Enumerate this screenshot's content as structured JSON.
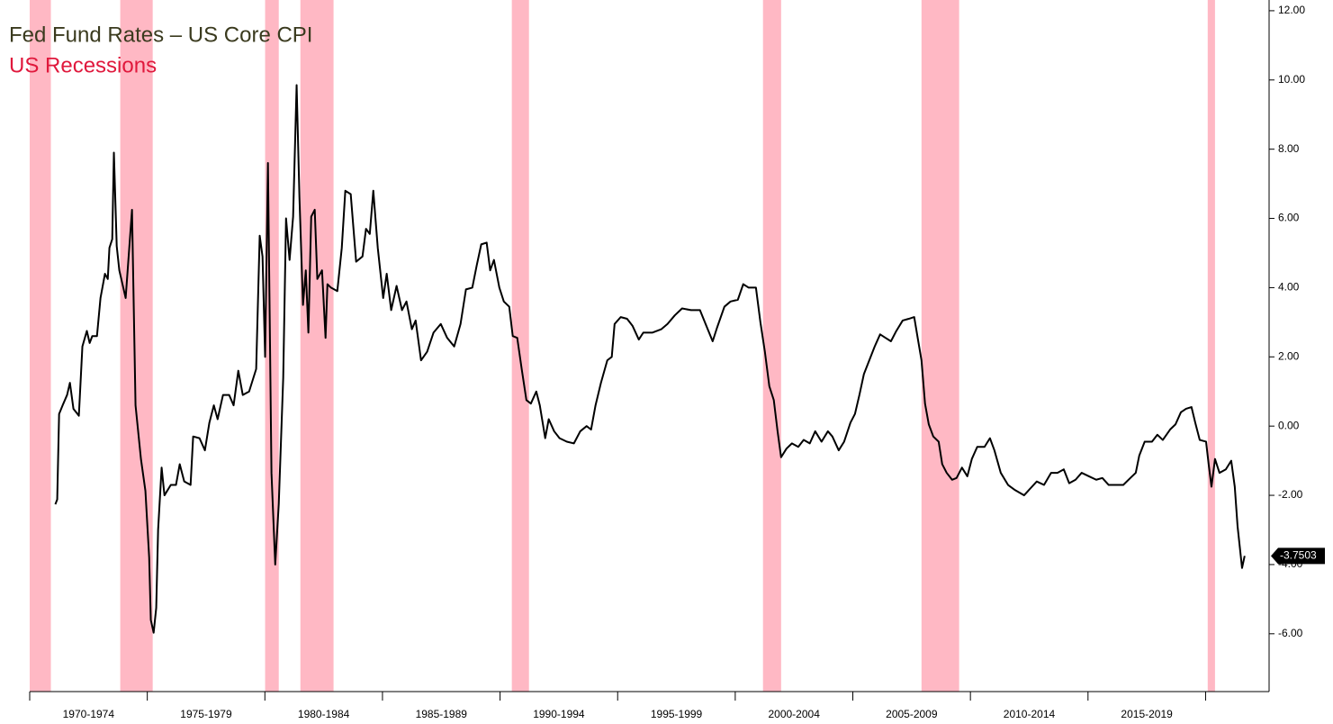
{
  "chart_data": {
    "type": "line",
    "title": "Fed Fund Rates – US Core CPI",
    "xlim": [
      1970,
      2022.7
    ],
    "xticks": [
      1970,
      1975,
      1980,
      1985,
      1990,
      1995,
      2000,
      2005,
      2010,
      2015,
      2020
    ],
    "categories": [
      "1970-1974",
      "1975-1979",
      "1980-1984",
      "1985-1989",
      "1990-1994",
      "1995-1999",
      "2000-2004",
      "2005-2009",
      "2010-2014",
      "2015-2019"
    ],
    "ylim": [
      -7.67,
      12.31
    ],
    "yticks": [
      {
        "value": -6,
        "label": "-6.00"
      },
      {
        "value": -4,
        "label": "-4.00"
      },
      {
        "value": -2,
        "label": "-2.00"
      },
      {
        "value": 0,
        "label": "0.00"
      },
      {
        "value": 2,
        "label": "2.00"
      },
      {
        "value": 4,
        "label": "4.00"
      },
      {
        "value": 6,
        "label": "6.00"
      },
      {
        "value": 8,
        "label": "8.00"
      },
      {
        "value": 10,
        "label": "10.00"
      },
      {
        "value": 12,
        "label": "12.00"
      }
    ],
    "recessions": {
      "name": "US Recessions",
      "color": "#ffb8c4",
      "spans": [
        [
          1970.0,
          1970.9
        ],
        [
          1973.85,
          1975.23
        ],
        [
          1980.01,
          1980.59
        ],
        [
          1981.51,
          1982.92
        ],
        [
          1990.5,
          1991.23
        ],
        [
          2001.18,
          2001.95
        ],
        [
          2007.92,
          2009.52
        ],
        [
          2020.09,
          2020.4
        ]
      ]
    },
    "series": [
      {
        "color": "#000000",
        "x": [
          1971.09,
          1971.17,
          1971.25,
          1971.4,
          1971.59,
          1971.71,
          1971.86,
          1972.09,
          1972.24,
          1972.43,
          1972.55,
          1972.66,
          1972.86,
          1973.01,
          1973.2,
          1973.32,
          1973.39,
          1973.51,
          1973.58,
          1973.7,
          1973.81,
          1974.08,
          1974.35,
          1974.5,
          1974.73,
          1974.92,
          1975.08,
          1975.15,
          1975.27,
          1975.38,
          1975.46,
          1975.61,
          1975.73,
          1976.0,
          1976.22,
          1976.38,
          1976.57,
          1976.84,
          1976.95,
          1977.22,
          1977.45,
          1977.64,
          1977.83,
          1977.99,
          1978.22,
          1978.48,
          1978.67,
          1978.87,
          1979.06,
          1979.33,
          1979.63,
          1979.78,
          1979.9,
          1980.01,
          1980.13,
          1980.28,
          1980.44,
          1980.59,
          1980.78,
          1980.9,
          1981.05,
          1981.2,
          1981.35,
          1981.47,
          1981.62,
          1981.74,
          1981.85,
          1981.97,
          1982.12,
          1982.23,
          1982.43,
          1982.58,
          1982.66,
          1982.81,
          1983.08,
          1983.27,
          1983.42,
          1983.65,
          1983.88,
          1984.15,
          1984.3,
          1984.46,
          1984.61,
          1984.8,
          1985.03,
          1985.18,
          1985.37,
          1985.6,
          1985.83,
          1986.02,
          1986.25,
          1986.41,
          1986.64,
          1986.9,
          1987.17,
          1987.48,
          1987.75,
          1988.05,
          1988.32,
          1988.55,
          1988.82,
          1989.01,
          1989.2,
          1989.43,
          1989.58,
          1989.74,
          1989.97,
          1990.16,
          1990.39,
          1990.54,
          1990.73,
          1990.92,
          1991.12,
          1991.31,
          1991.54,
          1991.69,
          1991.92,
          1992.07,
          1992.3,
          1992.53,
          1992.84,
          1993.14,
          1993.41,
          1993.68,
          1993.87,
          1994.06,
          1994.29,
          1994.56,
          1994.75,
          1994.87,
          1995.13,
          1995.4,
          1995.63,
          1995.9,
          1996.09,
          1996.47,
          1996.86,
          1997.12,
          1997.43,
          1997.74,
          1998.12,
          1998.5,
          1998.77,
          1999.04,
          1999.23,
          1999.54,
          1999.8,
          2000.11,
          2000.34,
          2000.57,
          2000.88,
          2001.07,
          2001.26,
          2001.45,
          2001.64,
          2001.8,
          2001.95,
          2002.18,
          2002.41,
          2002.68,
          2002.91,
          2003.17,
          2003.4,
          2003.67,
          2003.94,
          2004.13,
          2004.4,
          2004.63,
          2004.9,
          2005.09,
          2005.28,
          2005.47,
          2005.7,
          2005.93,
          2006.16,
          2006.39,
          2006.62,
          2006.85,
          2007.12,
          2007.38,
          2007.61,
          2007.77,
          2007.92,
          2008.07,
          2008.23,
          2008.42,
          2008.65,
          2008.8,
          2008.99,
          2009.22,
          2009.41,
          2009.64,
          2009.87,
          2010.06,
          2010.29,
          2010.6,
          2010.83,
          2011.02,
          2011.29,
          2011.6,
          2011.9,
          2012.28,
          2012.55,
          2012.82,
          2013.13,
          2013.43,
          2013.7,
          2013.97,
          2014.2,
          2014.47,
          2014.73,
          2015.04,
          2015.35,
          2015.61,
          2015.88,
          2016.19,
          2016.5,
          2016.8,
          2017.03,
          2017.18,
          2017.41,
          2017.72,
          2017.95,
          2018.18,
          2018.49,
          2018.72,
          2018.95,
          2019.17,
          2019.4,
          2019.56,
          2019.75,
          2020.02,
          2020.13,
          2020.25,
          2020.4,
          2020.59,
          2020.86,
          2021.09,
          2021.24,
          2021.36,
          2021.55,
          2021.66
        ],
        "values": [
          -2.26,
          -2.12,
          0.35,
          0.6,
          0.9,
          1.25,
          0.5,
          0.3,
          2.3,
          2.75,
          2.4,
          2.6,
          2.6,
          3.7,
          4.4,
          4.25,
          5.15,
          5.4,
          7.9,
          5.2,
          4.5,
          3.7,
          6.25,
          0.6,
          -0.95,
          -1.87,
          -3.8,
          -5.6,
          -5.97,
          -5.25,
          -3.0,
          -1.2,
          -2.0,
          -1.7,
          -1.7,
          -1.1,
          -1.6,
          -1.7,
          -0.3,
          -0.35,
          -0.7,
          0.1,
          0.6,
          0.2,
          0.9,
          0.9,
          0.6,
          1.6,
          0.9,
          1.0,
          1.65,
          5.5,
          4.9,
          2.0,
          7.6,
          -1.35,
          -4.0,
          -2.25,
          1.4,
          6.0,
          4.8,
          6.05,
          9.85,
          6.6,
          3.5,
          4.5,
          2.7,
          6.05,
          6.25,
          4.25,
          4.5,
          2.55,
          4.1,
          4.0,
          3.9,
          5.15,
          6.8,
          6.7,
          4.75,
          4.9,
          5.7,
          5.55,
          6.8,
          5.15,
          3.7,
          4.4,
          3.35,
          4.05,
          3.35,
          3.6,
          2.8,
          3.05,
          1.9,
          2.15,
          2.7,
          2.95,
          2.55,
          2.3,
          2.95,
          3.95,
          4.0,
          4.65,
          5.25,
          5.3,
          4.5,
          4.8,
          4.0,
          3.6,
          3.45,
          2.6,
          2.55,
          1.65,
          0.75,
          0.65,
          1.0,
          0.6,
          -0.35,
          0.2,
          -0.15,
          -0.35,
          -0.45,
          -0.5,
          -0.15,
          0.0,
          -0.1,
          0.6,
          1.25,
          1.9,
          2.0,
          2.95,
          3.15,
          3.1,
          2.9,
          2.5,
          2.7,
          2.7,
          2.8,
          2.95,
          3.2,
          3.4,
          3.35,
          3.35,
          2.9,
          2.45,
          2.85,
          3.45,
          3.6,
          3.65,
          4.1,
          4.0,
          4.0,
          3.0,
          2.15,
          1.15,
          0.75,
          -0.15,
          -0.9,
          -0.65,
          -0.5,
          -0.6,
          -0.4,
          -0.5,
          -0.15,
          -0.45,
          -0.15,
          -0.3,
          -0.7,
          -0.45,
          0.1,
          0.35,
          0.9,
          1.5,
          1.9,
          2.3,
          2.65,
          2.55,
          2.45,
          2.75,
          3.05,
          3.1,
          3.15,
          2.5,
          1.9,
          0.65,
          0.05,
          -0.3,
          -0.45,
          -1.1,
          -1.35,
          -1.55,
          -1.5,
          -1.2,
          -1.45,
          -0.95,
          -0.6,
          -0.6,
          -0.35,
          -0.7,
          -1.35,
          -1.7,
          -1.85,
          -2.0,
          -1.8,
          -1.6,
          -1.7,
          -1.35,
          -1.35,
          -1.25,
          -1.65,
          -1.55,
          -1.35,
          -1.45,
          -1.55,
          -1.5,
          -1.7,
          -1.7,
          -1.7,
          -1.5,
          -1.35,
          -0.85,
          -0.45,
          -0.45,
          -0.25,
          -0.4,
          -0.1,
          0.05,
          0.4,
          0.5,
          0.55,
          0.1,
          -0.4,
          -0.45,
          -1.1,
          -1.75,
          -0.95,
          -1.35,
          -1.25,
          -1.0,
          -1.75,
          -2.9,
          -4.1,
          -3.7503
        ]
      }
    ]
  }
}
